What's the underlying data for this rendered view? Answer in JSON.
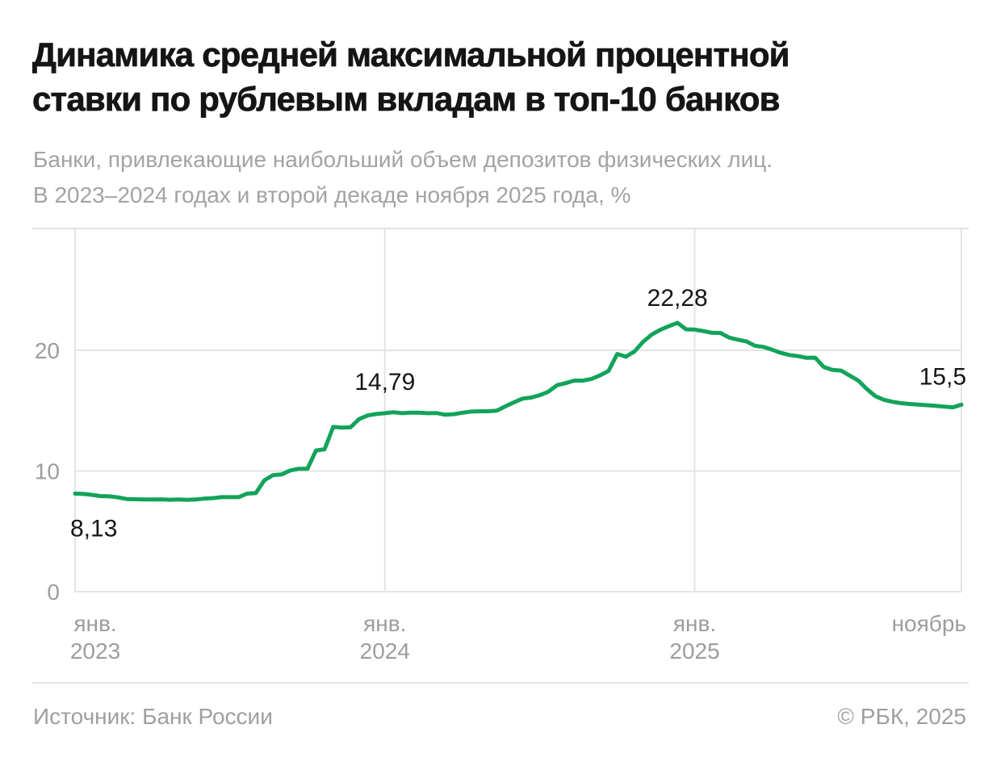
{
  "header": {
    "title_line1": "Динамика средней максимальной процентной",
    "title_line2": "ставки по рублевым вкладам в топ-10 банков",
    "subtitle_line1": "Банки, привлекающие наибольший объем депозитов физических лиц.",
    "subtitle_line2": "В 2023–2024 годах и второй декаде ноября 2025 года, %"
  },
  "footer": {
    "source": "Источник: Банк России",
    "copyright": "© РБК, 2025"
  },
  "chart_data": {
    "type": "line",
    "title": "Динамика средней максимальной процентной ставки по рублевым вкладам в топ-10 банков",
    "unit": "%",
    "x_frequency": "декада (3 точки в месяц)",
    "x_start": "январь 2023, I декада",
    "x_end": "ноябрь 2025, II декада",
    "ylim": [
      0,
      30
    ],
    "grid": "on",
    "legend": "none",
    "line_color": "#12a35a",
    "grid_color": "#e4e4e4",
    "tick_color": "#9d9d9d",
    "annotation_color": "#161616",
    "yticks": [
      {
        "value": 0,
        "label": "0"
      },
      {
        "value": 10,
        "label": "10"
      },
      {
        "value": 20,
        "label": "20"
      }
    ],
    "xticks": [
      {
        "line1": "янв.",
        "line2": "2023",
        "index": 0
      },
      {
        "line1": "янв.",
        "line2": "2024",
        "index": 36
      },
      {
        "line1": "янв.",
        "line2": "2025",
        "index": 72
      },
      {
        "line1": "ноябрь",
        "line2": "",
        "index": 103
      }
    ],
    "values": [
      8.13,
      8.1,
      8.02,
      7.92,
      7.9,
      7.81,
      7.68,
      7.66,
      7.64,
      7.64,
      7.65,
      7.62,
      7.64,
      7.61,
      7.64,
      7.71,
      7.75,
      7.83,
      7.83,
      7.83,
      8.13,
      8.17,
      9.23,
      9.66,
      9.71,
      10.05,
      10.19,
      10.18,
      11.7,
      11.8,
      13.65,
      13.6,
      13.62,
      14.3,
      14.6,
      14.72,
      14.79,
      14.87,
      14.79,
      14.83,
      14.83,
      14.79,
      14.8,
      14.66,
      14.71,
      14.83,
      14.92,
      14.95,
      14.95,
      15.0,
      15.36,
      15.69,
      16.0,
      16.09,
      16.28,
      16.57,
      17.11,
      17.28,
      17.49,
      17.49,
      17.63,
      17.92,
      18.3,
      19.7,
      19.47,
      19.9,
      20.7,
      21.3,
      21.7,
      22.0,
      22.28,
      21.74,
      21.72,
      21.6,
      21.45,
      21.44,
      21.06,
      20.88,
      20.74,
      20.38,
      20.28,
      20.05,
      19.79,
      19.61,
      19.52,
      19.38,
      19.39,
      18.62,
      18.38,
      18.32,
      17.91,
      17.5,
      16.8,
      16.2,
      15.9,
      15.73,
      15.62,
      15.55,
      15.5,
      15.45,
      15.4,
      15.33,
      15.28,
      15.5
    ],
    "annotations": [
      {
        "text": "8,13",
        "index": 0,
        "value": 8.13,
        "placement": "below-start"
      },
      {
        "text": "14,79",
        "index": 36,
        "value": 14.79,
        "placement": "above"
      },
      {
        "text": "22,28",
        "index": 70,
        "value": 22.28,
        "placement": "above-peak"
      },
      {
        "text": "15,5",
        "index": 103,
        "value": 15.5,
        "placement": "end"
      }
    ]
  }
}
